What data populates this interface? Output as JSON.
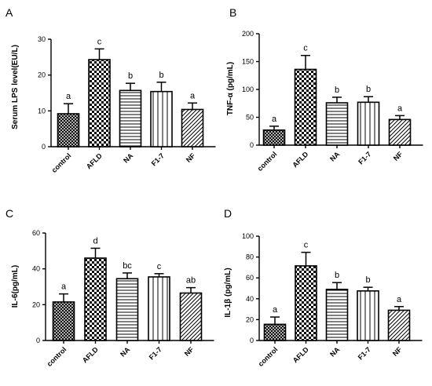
{
  "chart_data": [
    {
      "type": "bar",
      "panel": "A",
      "categories": [
        "control",
        "AFLD",
        "NA",
        "F1-7",
        "NF"
      ],
      "values": [
        9.2,
        24.3,
        15.7,
        15.4,
        10.4
      ],
      "errors": [
        2.8,
        3.0,
        2.0,
        2.6,
        1.8
      ],
      "significance": [
        "a",
        "c",
        "b",
        "b",
        "a"
      ],
      "ylabel": "Serum LPS level(EU/L)",
      "ylim": [
        0,
        30
      ],
      "yticks": [
        0,
        10,
        20,
        30
      ],
      "patterns": [
        "grid",
        "check",
        "hlines",
        "vlines",
        "diag"
      ]
    },
    {
      "type": "bar",
      "panel": "B",
      "categories": [
        "control",
        "AFLD",
        "NA",
        "F1-7",
        "NF"
      ],
      "values": [
        27,
        136,
        76,
        77,
        46
      ],
      "errors": [
        7,
        25,
        10,
        10,
        7
      ],
      "significance": [
        "a",
        "c",
        "b",
        "b",
        "a"
      ],
      "ylabel": "TNF-α (pg/mL)",
      "ylim": [
        0,
        200
      ],
      "yticks": [
        0,
        50,
        100,
        150,
        200
      ],
      "patterns": [
        "grid",
        "check",
        "hlines",
        "vlines",
        "diag"
      ]
    },
    {
      "type": "bar",
      "panel": "C",
      "categories": [
        "control",
        "AFLD",
        "NA",
        "F1-7",
        "NF"
      ],
      "values": [
        21.5,
        46,
        34.5,
        35.5,
        26.5
      ],
      "errors": [
        4.5,
        5.5,
        3.2,
        1.8,
        3.0
      ],
      "significance": [
        "a",
        "d",
        "bc",
        "c",
        "ab"
      ],
      "ylabel": "IL-6(pg/mL)",
      "ylim": [
        0,
        60
      ],
      "yticks": [
        0,
        20,
        40,
        60
      ],
      "patterns": [
        "grid",
        "check",
        "hlines",
        "vlines",
        "diag"
      ]
    },
    {
      "type": "bar",
      "panel": "D",
      "categories": [
        "control",
        "AFLD",
        "NA",
        "F1-7",
        "NF"
      ],
      "values": [
        15.5,
        71.5,
        49,
        47.5,
        29
      ],
      "errors": [
        7,
        13,
        6.5,
        3.5,
        3.5
      ],
      "significance": [
        "a",
        "c",
        "b",
        "b",
        "a"
      ],
      "ylabel": "IL-1β (pg/mL)",
      "ylim": [
        0,
        100
      ],
      "yticks": [
        0,
        20,
        40,
        60,
        80,
        100
      ],
      "patterns": [
        "grid",
        "check",
        "hlines",
        "vlines",
        "diag"
      ]
    }
  ]
}
